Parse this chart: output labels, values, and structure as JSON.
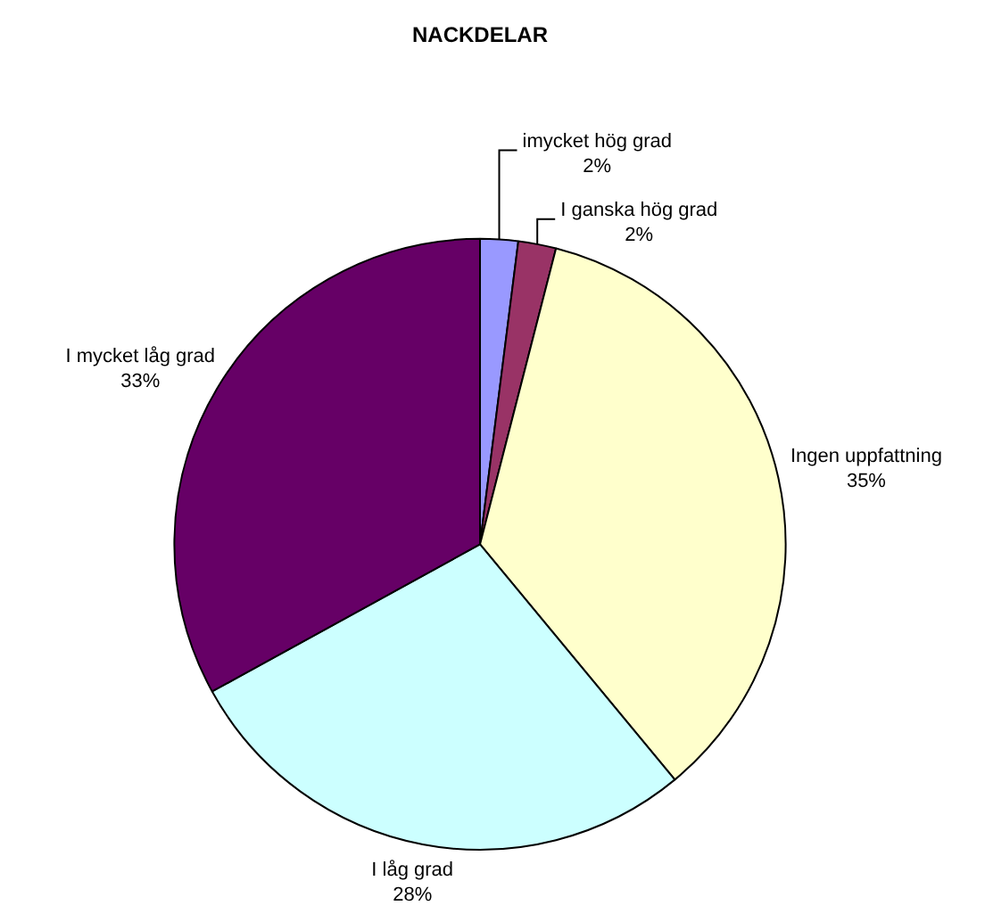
{
  "chart_data": {
    "type": "pie",
    "title": "NACKDELAR",
    "categories": [
      "imycket hög grad",
      "I ganska hög grad",
      "Ingen uppfattning",
      "I låg grad",
      "I mycket låg grad"
    ],
    "values": [
      2,
      2,
      35,
      28,
      33
    ],
    "value_labels": [
      "2%",
      "2%",
      "35%",
      "28%",
      "33%"
    ],
    "colors": [
      "#9999ff",
      "#993366",
      "#ffffcc",
      "#ccffff",
      "#660066"
    ]
  }
}
